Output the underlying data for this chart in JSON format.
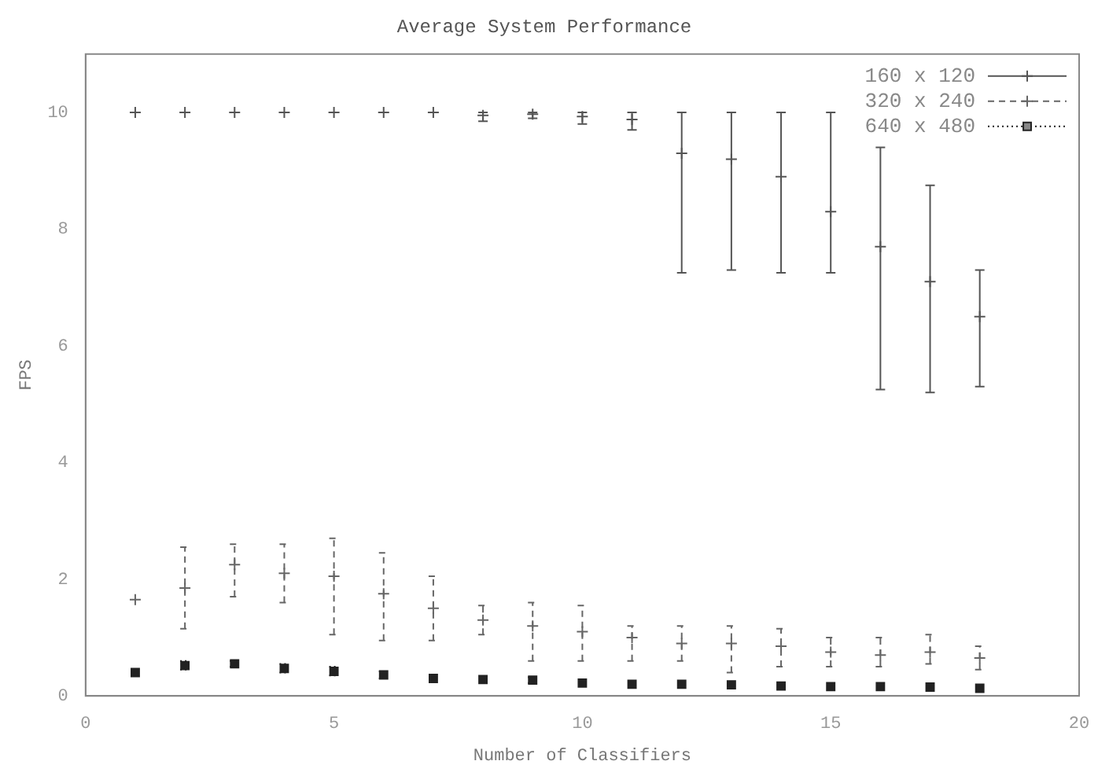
{
  "chart_data": {
    "type": "scatter",
    "title": "Average System Performance",
    "xlabel": "Number of Classifiers",
    "ylabel": "FPS",
    "x": [
      1,
      2,
      3,
      4,
      5,
      6,
      7,
      8,
      9,
      10,
      11,
      12,
      13,
      14,
      15,
      16,
      17,
      18
    ],
    "xlim": [
      0,
      20
    ],
    "xticks": [
      0,
      5,
      10,
      15,
      20
    ],
    "ylim": [
      0,
      11
    ],
    "yticks": [
      0,
      2,
      4,
      6,
      8,
      10
    ],
    "grid": false,
    "legend": "top right",
    "series": [
      {
        "name": "160 x 120",
        "color": "#555555",
        "marker": "cross",
        "line_style": "solid",
        "values": [
          10,
          10,
          10,
          10,
          10,
          10,
          10,
          9.95,
          9.97,
          9.93,
          9.88,
          9.3,
          9.2,
          8.9,
          8.3,
          7.7,
          7.1,
          6.5
        ],
        "errors": [
          null,
          null,
          null,
          null,
          null,
          null,
          null,
          [
            9.85,
            10
          ],
          [
            9.9,
            10
          ],
          [
            9.8,
            10
          ],
          [
            9.7,
            10
          ],
          [
            7.25,
            10
          ],
          [
            7.3,
            10
          ],
          [
            7.25,
            10
          ],
          [
            7.25,
            10
          ],
          [
            5.25,
            9.4
          ],
          [
            5.2,
            8.75
          ],
          [
            5.3,
            7.3
          ]
        ]
      },
      {
        "name": "320 x 240",
        "color": "#666666",
        "marker": "cross",
        "line_style": "dashed",
        "values": [
          1.65,
          1.85,
          2.25,
          2.1,
          2.05,
          1.75,
          1.5,
          1.3,
          1.2,
          1.1,
          1.0,
          0.9,
          0.9,
          0.85,
          0.75,
          0.7,
          0.75,
          0.65
        ],
        "errors": [
          null,
          [
            1.15,
            2.55
          ],
          [
            1.7,
            2.6
          ],
          [
            1.6,
            2.6
          ],
          [
            1.05,
            2.7
          ],
          [
            0.95,
            2.45
          ],
          [
            0.95,
            2.05
          ],
          [
            1.05,
            1.55
          ],
          [
            0.6,
            1.6
          ],
          [
            0.6,
            1.55
          ],
          [
            0.6,
            1.2
          ],
          [
            0.6,
            1.2
          ],
          [
            0.4,
            1.2
          ],
          [
            0.5,
            1.15
          ],
          [
            0.5,
            1.0
          ],
          [
            0.5,
            1.0
          ],
          [
            0.55,
            1.05
          ],
          [
            0.45,
            0.85
          ]
        ]
      },
      {
        "name": "640 x 480",
        "color": "#222222",
        "marker": "square",
        "line_style": "dotted",
        "values": [
          0.4,
          0.52,
          0.55,
          0.47,
          0.42,
          0.36,
          0.3,
          0.28,
          0.27,
          0.22,
          0.2,
          0.2,
          0.19,
          0.17,
          0.16,
          0.16,
          0.15,
          0.13
        ],
        "errors": [
          null,
          [
            0.45,
            0.6
          ],
          [
            0.5,
            0.6
          ],
          [
            0.4,
            0.55
          ],
          [
            0.35,
            0.5
          ],
          [
            0.3,
            0.42
          ],
          null,
          null,
          [
            0.22,
            0.32
          ],
          null,
          null,
          null,
          null,
          null,
          null,
          null,
          null,
          null
        ]
      }
    ]
  }
}
